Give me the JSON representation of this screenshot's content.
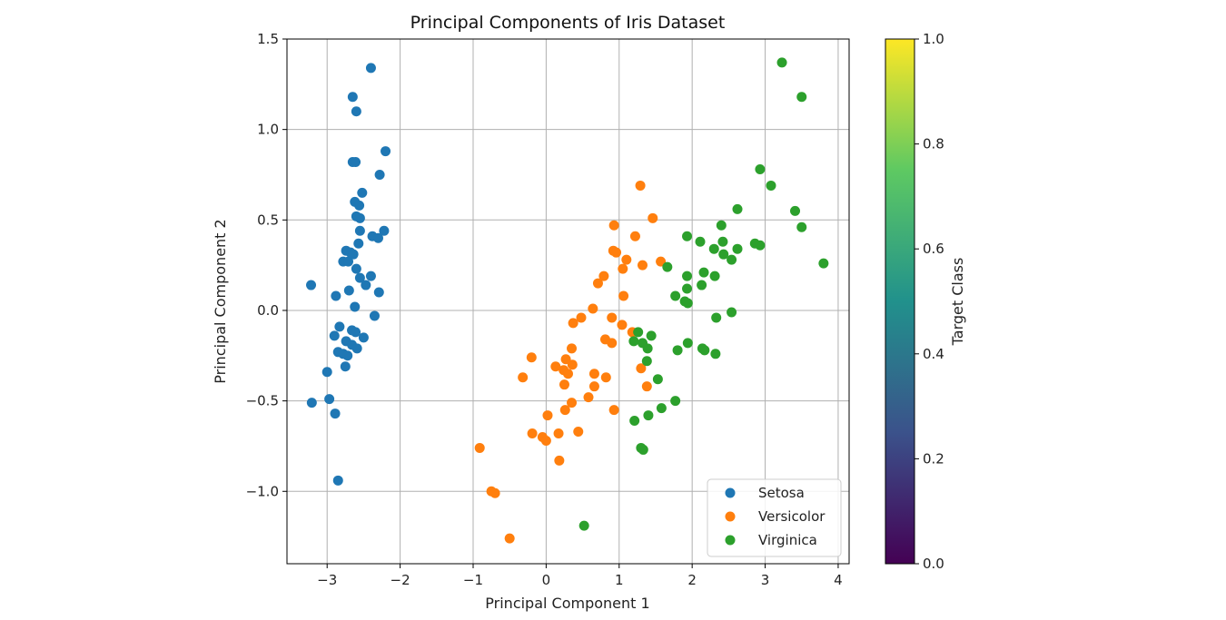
{
  "chart_data": {
    "type": "scatter",
    "title": "Principal Components of Iris Dataset",
    "xlabel": "Principal Component 1",
    "ylabel": "Principal Component 2",
    "xlim": [
      -3.55,
      4.15
    ],
    "ylim": [
      -1.4,
      1.5
    ],
    "xticks": [
      -3,
      -2,
      -1,
      0,
      1,
      2,
      3,
      4
    ],
    "xtick_labels": [
      "−3",
      "−2",
      "−1",
      "0",
      "1",
      "2",
      "3",
      "4"
    ],
    "yticks": [
      -1.0,
      -0.5,
      0.0,
      0.5,
      1.0,
      1.5
    ],
    "ytick_labels": [
      "−1.0",
      "−0.5",
      "0.0",
      "0.5",
      "1.0",
      "1.5"
    ],
    "grid": true,
    "legend_position": "bottom-right",
    "series": [
      {
        "name": "Setosa",
        "color": "#1f77b4",
        "points": [
          [
            -2.4,
            1.34
          ],
          [
            -2.65,
            1.18
          ],
          [
            -2.6,
            1.1
          ],
          [
            -2.2,
            0.88
          ],
          [
            -2.65,
            0.82
          ],
          [
            -2.61,
            0.82
          ],
          [
            -2.28,
            0.75
          ],
          [
            -2.52,
            0.65
          ],
          [
            -2.62,
            0.6
          ],
          [
            -2.56,
            0.58
          ],
          [
            -2.6,
            0.52
          ],
          [
            -2.55,
            0.51
          ],
          [
            -2.22,
            0.44
          ],
          [
            -2.55,
            0.44
          ],
          [
            -2.38,
            0.41
          ],
          [
            -2.3,
            0.4
          ],
          [
            -2.57,
            0.37
          ],
          [
            -2.74,
            0.33
          ],
          [
            -2.68,
            0.32
          ],
          [
            -2.64,
            0.31
          ],
          [
            -2.78,
            0.27
          ],
          [
            -2.71,
            0.27
          ],
          [
            -2.6,
            0.23
          ],
          [
            -2.4,
            0.19
          ],
          [
            -2.55,
            0.18
          ],
          [
            -2.47,
            0.14
          ],
          [
            -3.22,
            0.14
          ],
          [
            -2.7,
            0.11
          ],
          [
            -2.29,
            0.1
          ],
          [
            -2.88,
            0.08
          ],
          [
            -2.62,
            0.02
          ],
          [
            -2.35,
            -0.03
          ],
          [
            -2.83,
            -0.09
          ],
          [
            -2.66,
            -0.11
          ],
          [
            -2.61,
            -0.12
          ],
          [
            -2.9,
            -0.14
          ],
          [
            -2.5,
            -0.15
          ],
          [
            -2.74,
            -0.17
          ],
          [
            -2.66,
            -0.19
          ],
          [
            -2.59,
            -0.21
          ],
          [
            -2.85,
            -0.23
          ],
          [
            -2.78,
            -0.24
          ],
          [
            -2.72,
            -0.25
          ],
          [
            -2.75,
            -0.31
          ],
          [
            -3.0,
            -0.34
          ],
          [
            -2.97,
            -0.49
          ],
          [
            -3.21,
            -0.51
          ],
          [
            -2.89,
            -0.57
          ],
          [
            -2.85,
            -0.94
          ]
        ]
      },
      {
        "name": "Versicolor",
        "color": "#ff7f0e",
        "points": [
          [
            1.29,
            0.69
          ],
          [
            1.46,
            0.51
          ],
          [
            0.93,
            0.47
          ],
          [
            1.22,
            0.41
          ],
          [
            0.92,
            0.33
          ],
          [
            0.96,
            0.32
          ],
          [
            1.1,
            0.28
          ],
          [
            1.57,
            0.27
          ],
          [
            1.32,
            0.25
          ],
          [
            1.05,
            0.23
          ],
          [
            0.79,
            0.19
          ],
          [
            0.71,
            0.15
          ],
          [
            1.06,
            0.08
          ],
          [
            0.64,
            0.01
          ],
          [
            0.9,
            -0.04
          ],
          [
            0.48,
            -0.04
          ],
          [
            0.37,
            -0.07
          ],
          [
            1.04,
            -0.08
          ],
          [
            1.18,
            -0.12
          ],
          [
            0.81,
            -0.16
          ],
          [
            0.9,
            -0.18
          ],
          [
            0.35,
            -0.21
          ],
          [
            -0.2,
            -0.26
          ],
          [
            0.27,
            -0.27
          ],
          [
            0.36,
            -0.3
          ],
          [
            0.13,
            -0.31
          ],
          [
            1.3,
            -0.32
          ],
          [
            0.24,
            -0.33
          ],
          [
            0.3,
            -0.35
          ],
          [
            0.66,
            -0.35
          ],
          [
            -0.32,
            -0.37
          ],
          [
            0.82,
            -0.37
          ],
          [
            0.25,
            -0.41
          ],
          [
            0.66,
            -0.42
          ],
          [
            1.38,
            -0.42
          ],
          [
            0.58,
            -0.48
          ],
          [
            0.35,
            -0.51
          ],
          [
            0.26,
            -0.55
          ],
          [
            0.93,
            -0.55
          ],
          [
            0.02,
            -0.58
          ],
          [
            0.44,
            -0.67
          ],
          [
            0.17,
            -0.68
          ],
          [
            -0.19,
            -0.68
          ],
          [
            -0.05,
            -0.7
          ],
          [
            0.0,
            -0.72
          ],
          [
            -0.91,
            -0.76
          ],
          [
            0.18,
            -0.83
          ],
          [
            -0.75,
            -1.0
          ],
          [
            -0.7,
            -1.01
          ],
          [
            -0.5,
            -1.26
          ]
        ]
      },
      {
        "name": "Virginica",
        "color": "#2ca02c",
        "points": [
          [
            3.23,
            1.37
          ],
          [
            3.5,
            1.18
          ],
          [
            2.93,
            0.78
          ],
          [
            3.08,
            0.69
          ],
          [
            2.62,
            0.56
          ],
          [
            3.41,
            0.55
          ],
          [
            2.4,
            0.47
          ],
          [
            3.5,
            0.46
          ],
          [
            1.93,
            0.41
          ],
          [
            2.11,
            0.38
          ],
          [
            2.42,
            0.38
          ],
          [
            2.86,
            0.37
          ],
          [
            2.93,
            0.36
          ],
          [
            2.3,
            0.34
          ],
          [
            2.62,
            0.34
          ],
          [
            2.43,
            0.31
          ],
          [
            2.54,
            0.28
          ],
          [
            3.8,
            0.26
          ],
          [
            1.66,
            0.24
          ],
          [
            2.16,
            0.21
          ],
          [
            1.93,
            0.19
          ],
          [
            2.31,
            0.19
          ],
          [
            2.13,
            0.14
          ],
          [
            1.93,
            0.12
          ],
          [
            1.77,
            0.08
          ],
          [
            1.9,
            0.05
          ],
          [
            1.94,
            0.04
          ],
          [
            2.54,
            -0.01
          ],
          [
            2.33,
            -0.04
          ],
          [
            1.26,
            -0.12
          ],
          [
            1.44,
            -0.14
          ],
          [
            1.2,
            -0.17
          ],
          [
            1.32,
            -0.18
          ],
          [
            1.94,
            -0.18
          ],
          [
            1.39,
            -0.21
          ],
          [
            1.8,
            -0.22
          ],
          [
            2.14,
            -0.21
          ],
          [
            2.17,
            -0.22
          ],
          [
            2.32,
            -0.24
          ],
          [
            1.38,
            -0.28
          ],
          [
            1.53,
            -0.38
          ],
          [
            1.77,
            -0.5
          ],
          [
            1.58,
            -0.54
          ],
          [
            1.4,
            -0.58
          ],
          [
            1.21,
            -0.61
          ],
          [
            1.3,
            -0.76
          ],
          [
            1.33,
            -0.77
          ],
          [
            0.52,
            -1.19
          ]
        ]
      }
    ],
    "colorbar": {
      "label": "Target Class",
      "range": [
        0,
        1
      ],
      "ticks": [
        0.0,
        0.2,
        0.4,
        0.6,
        0.8,
        1.0
      ],
      "tick_labels": [
        "0.0",
        "0.2",
        "0.4",
        "0.6",
        "0.8",
        "1.0"
      ],
      "colormap_stops": [
        "#440154",
        "#3b528b",
        "#21918c",
        "#5ec962",
        "#fde725"
      ]
    }
  }
}
